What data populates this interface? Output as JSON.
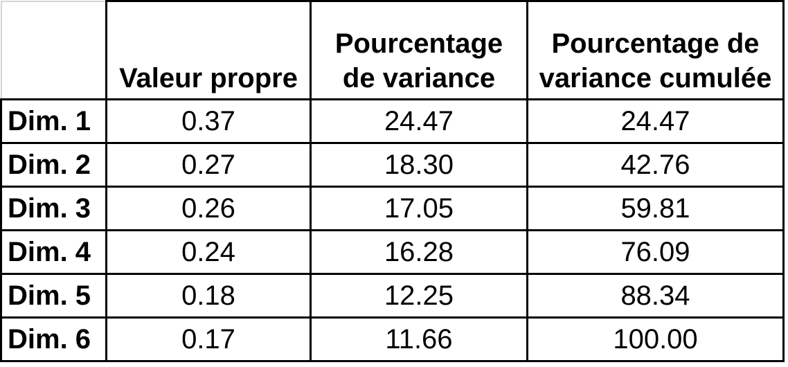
{
  "table": {
    "headers": {
      "corner": "",
      "col1": "Valeur propre",
      "col2_line1": "Pourcentage",
      "col2_line2": "de variance",
      "col3_line1": "Pourcentage de",
      "col3_line2": "variance cumulée"
    },
    "rows": [
      {
        "label": "Dim. 1",
        "valeur_propre": "0.37",
        "pourcentage_variance": "24.47",
        "pourcentage_cumule": "24.47"
      },
      {
        "label": "Dim. 2",
        "valeur_propre": "0.27",
        "pourcentage_variance": "18.30",
        "pourcentage_cumule": "42.76"
      },
      {
        "label": "Dim. 3",
        "valeur_propre": "0.26",
        "pourcentage_variance": "17.05",
        "pourcentage_cumule": "59.81"
      },
      {
        "label": "Dim. 4",
        "valeur_propre": "0.24",
        "pourcentage_variance": "16.28",
        "pourcentage_cumule": "76.09"
      },
      {
        "label": "Dim. 5",
        "valeur_propre": "0.18",
        "pourcentage_variance": "12.25",
        "pourcentage_cumule": "88.34"
      },
      {
        "label": "Dim. 6",
        "valeur_propre": "0.17",
        "pourcentage_variance": "11.66",
        "pourcentage_cumule": "100.00"
      }
    ]
  }
}
